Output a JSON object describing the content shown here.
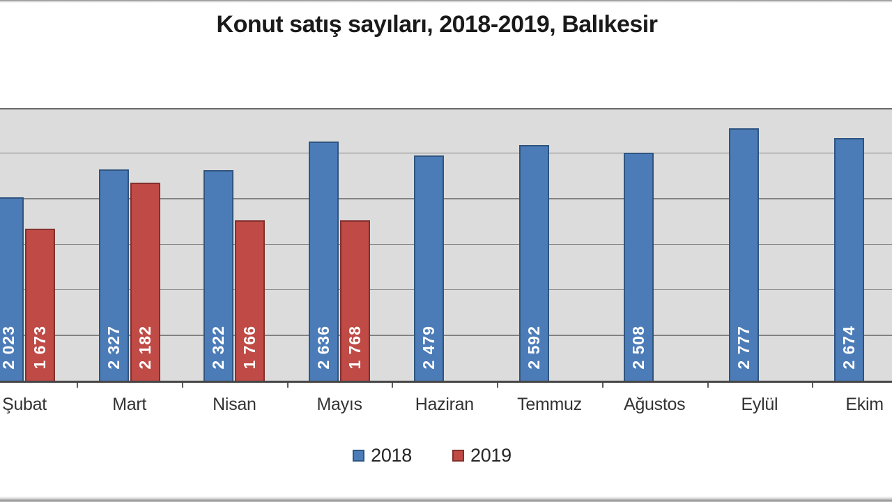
{
  "chart_data": {
    "type": "bar",
    "title": "Konut satış sayıları, 2018-2019, Balıkesir",
    "categories": [
      "Şubat",
      "Mart",
      "Nisan",
      "Mayıs",
      "Haziran",
      "Temmuz",
      "Ağustos",
      "Eylül",
      "Ekim"
    ],
    "series": [
      {
        "name": "2018",
        "color": "#4C7CB8",
        "border_color": "#2F5580",
        "label_color": "#FFFFFF",
        "values": [
          2023,
          2327,
          2322,
          2636,
          2479,
          2592,
          2508,
          2777,
          2674
        ],
        "labels": [
          "2 023",
          "2 327",
          "2 322",
          "2 636",
          "2 479",
          "2 592",
          "2 508",
          "2 777",
          "2 674"
        ]
      },
      {
        "name": "2019",
        "color": "#BF4A46",
        "border_color": "#84302D",
        "label_color": "#FFFFFF",
        "values": [
          1673,
          2182,
          1766,
          1768,
          null,
          null,
          null,
          null,
          null
        ],
        "labels": [
          "1 673",
          "2 182",
          "1 766",
          "1 768",
          null,
          null,
          null,
          null,
          null
        ]
      }
    ],
    "xlabel": "",
    "ylabel": "",
    "ylim": [
      0,
      3000
    ],
    "grid_step": 500,
    "grid": "on",
    "y_axis_tick_labels_visible": false,
    "legend_position": "bottom",
    "plot_bg_color": "#DCDCDC",
    "gridline_color": "#828282"
  }
}
